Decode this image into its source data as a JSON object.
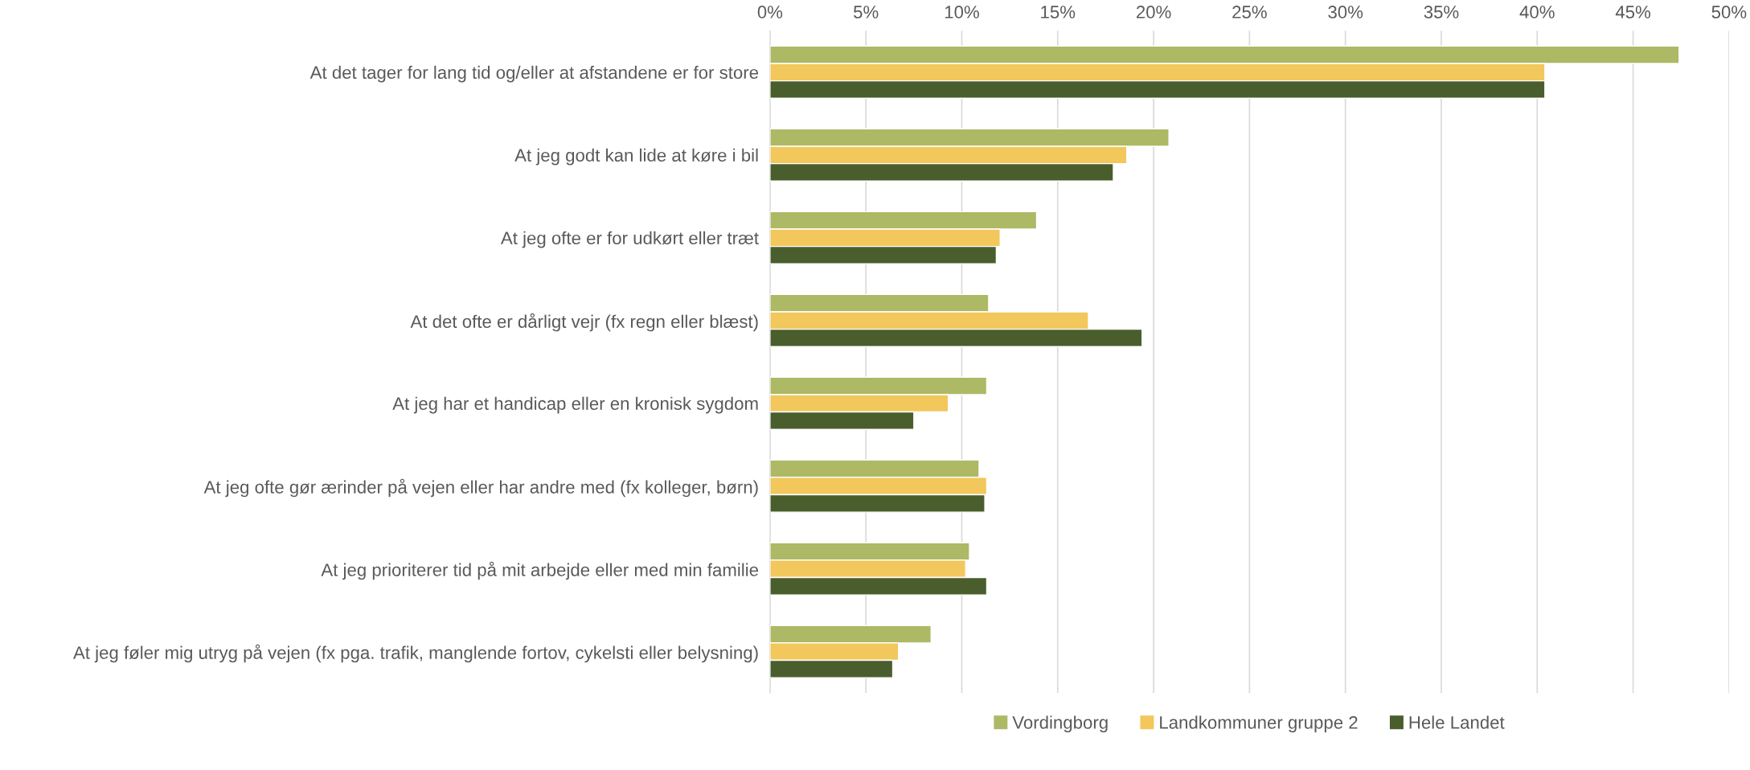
{
  "chart_data": {
    "type": "bar",
    "orientation": "horizontal",
    "categories": [
      "At det tager for lang tid og/eller at afstandene er for store",
      "At jeg godt kan lide at køre i bil",
      "At jeg ofte er for udkørt eller træt",
      "At det ofte er dårligt vejr (fx regn eller blæst)",
      "At jeg har et handicap eller en kronisk sygdom",
      "At jeg ofte gør ærinder på vejen eller har andre med (fx kolleger, børn)",
      "At jeg prioriterer tid på mit arbejde eller med min familie",
      "At jeg føler mig utryg på vejen (fx pga. trafik, manglende fortov, cykelsti eller belysning)"
    ],
    "series": [
      {
        "name": "Vordingborg",
        "color": "#adb964",
        "values": [
          47.4,
          20.8,
          13.9,
          11.4,
          11.3,
          10.9,
          10.4,
          8.4
        ]
      },
      {
        "name": "Landkommuner gruppe 2",
        "color": "#f2c75c",
        "values": [
          40.4,
          18.6,
          12.0,
          16.6,
          9.3,
          11.3,
          10.2,
          6.7
        ]
      },
      {
        "name": "Hele Landet",
        "color": "#4a5e2d",
        "values": [
          40.4,
          17.9,
          11.8,
          19.4,
          7.5,
          11.2,
          11.3,
          6.4
        ]
      }
    ],
    "xlim": [
      0,
      50
    ],
    "xticks": [
      {
        "value": 0,
        "label": "0%"
      },
      {
        "value": 5,
        "label": "5%"
      },
      {
        "value": 10,
        "label": "10%"
      },
      {
        "value": 15,
        "label": "15%"
      },
      {
        "value": 20,
        "label": "20%"
      },
      {
        "value": 25,
        "label": "25%"
      },
      {
        "value": 30,
        "label": "30%"
      },
      {
        "value": 35,
        "label": "35%"
      },
      {
        "value": 40,
        "label": "40%"
      },
      {
        "value": 45,
        "label": "45%"
      },
      {
        "value": 50,
        "label": "50%"
      }
    ],
    "grid": "x",
    "legend": "bottom"
  }
}
